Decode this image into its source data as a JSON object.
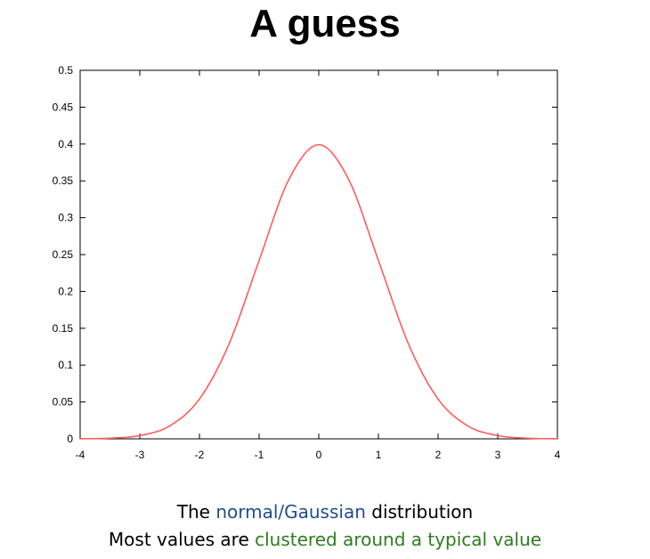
{
  "page": {
    "title": "A guess"
  },
  "caption": {
    "line1_prefix": "The ",
    "line1_highlight": "normal/Gaussian",
    "line1_suffix": " distribution",
    "line2_prefix": "Most values are ",
    "line2_highlight": "clustered around a typical value"
  },
  "colors": {
    "curve": "#ff5c5c",
    "highlight_blue": "#1f4e8c",
    "highlight_green": "#2e7d1e"
  },
  "chart_data": {
    "type": "line",
    "title": "",
    "xlabel": "",
    "ylabel": "",
    "xlim": [
      -4,
      4
    ],
    "ylim": [
      0,
      0.5
    ],
    "x_ticks": [
      -4,
      -3,
      -2,
      -1,
      0,
      1,
      2,
      3,
      4
    ],
    "x_tick_labels": [
      "-4",
      "-3",
      "-2",
      "-1",
      "0",
      "1",
      "2",
      "3",
      "4"
    ],
    "y_ticks": [
      0,
      0.05,
      0.1,
      0.15,
      0.2,
      0.25,
      0.3,
      0.35,
      0.4,
      0.45,
      0.5
    ],
    "y_tick_labels": [
      "0",
      "0.05",
      "0.1",
      "0.15",
      "0.2",
      "0.25",
      "0.3",
      "0.35",
      "0.4",
      "0.45",
      "0.5"
    ],
    "grid": false,
    "series": [
      {
        "x": [
          -4,
          -3.5,
          -3,
          -2.5,
          -2,
          -1.5,
          -1,
          -0.5,
          0,
          0.5,
          1,
          1.5,
          2,
          2.5,
          3,
          3.5,
          4
        ],
        "y": [
          0.0001,
          0.0009,
          0.0044,
          0.0175,
          0.054,
          0.1295,
          0.242,
          0.352,
          0.399,
          0.352,
          0.242,
          0.1295,
          0.054,
          0.0175,
          0.0044,
          0.0009,
          0.0001
        ]
      }
    ]
  }
}
